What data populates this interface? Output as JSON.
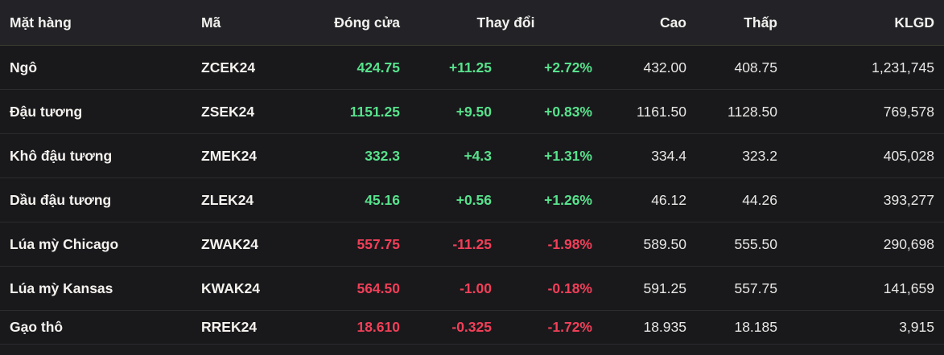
{
  "colors": {
    "positive": "#58e28c",
    "negative": "#f23f58",
    "neutral_text": "#e9e7e4",
    "header_bg": "#232327",
    "row_bg": "#19191c"
  },
  "table": {
    "headers": {
      "name": "Mặt hàng",
      "code": "Mã",
      "close": "Đóng cửa",
      "change": "Thay đổi",
      "high": "Cao",
      "low": "Thấp",
      "volume": "KLGD"
    },
    "rows": [
      {
        "name": "Ngô",
        "code": "ZCEK24",
        "close": "424.75",
        "change": "+11.25",
        "change_pct": "+2.72%",
        "high": "432.00",
        "low": "408.75",
        "volume": "1,231,745",
        "direction": "up"
      },
      {
        "name": "Đậu tương",
        "code": "ZSEK24",
        "close": "1151.25",
        "change": "+9.50",
        "change_pct": "+0.83%",
        "high": "1161.50",
        "low": "1128.50",
        "volume": "769,578",
        "direction": "up"
      },
      {
        "name": "Khô đậu tương",
        "code": "ZMEK24",
        "close": "332.3",
        "change": "+4.3",
        "change_pct": "+1.31%",
        "high": "334.4",
        "low": "323.2",
        "volume": "405,028",
        "direction": "up"
      },
      {
        "name": "Dầu đậu tương",
        "code": "ZLEK24",
        "close": "45.16",
        "change": "+0.56",
        "change_pct": "+1.26%",
        "high": "46.12",
        "low": "44.26",
        "volume": "393,277",
        "direction": "up"
      },
      {
        "name": "Lúa mỳ Chicago",
        "code": "ZWAK24",
        "close": "557.75",
        "change": "-11.25",
        "change_pct": "-1.98%",
        "high": "589.50",
        "low": "555.50",
        "volume": "290,698",
        "direction": "down"
      },
      {
        "name": "Lúa mỳ Kansas",
        "code": "KWAK24",
        "close": "564.50",
        "change": "-1.00",
        "change_pct": "-0.18%",
        "high": "591.25",
        "low": "557.75",
        "volume": "141,659",
        "direction": "down"
      },
      {
        "name": "Gạo thô",
        "code": "RREK24",
        "close": "18.610",
        "change": "-0.325",
        "change_pct": "-1.72%",
        "high": "18.935",
        "low": "18.185",
        "volume": "3,915",
        "direction": "down"
      }
    ]
  }
}
